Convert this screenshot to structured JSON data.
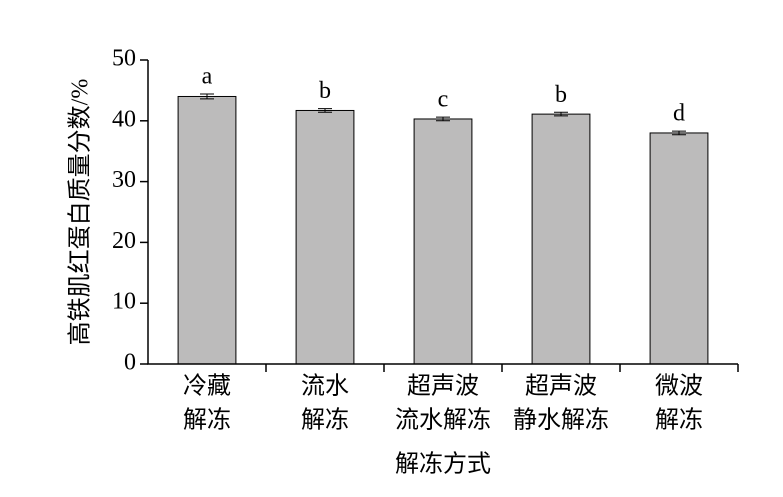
{
  "chart_data": {
    "type": "bar",
    "y_label": "高铁肌红蛋白质量分数/%",
    "x_label": "解冻方式",
    "categories": [
      [
        "冷藏",
        "解冻"
      ],
      [
        "流水",
        "解冻"
      ],
      [
        "超声波",
        "流水解冻"
      ],
      [
        "超声波",
        "静水解冻"
      ],
      [
        "微波",
        "解冻"
      ]
    ],
    "values": [
      44.0,
      41.7,
      40.3,
      41.1,
      38.0
    ],
    "errors": [
      0.4,
      0.3,
      0.3,
      0.3,
      0.3
    ],
    "annotations": [
      "a",
      "b",
      "c",
      "b",
      "d"
    ],
    "color": "#bcbbbb",
    "ylim": [
      0,
      50
    ],
    "yticks": [
      0,
      10,
      20,
      30,
      40,
      50
    ],
    "grid": false
  }
}
